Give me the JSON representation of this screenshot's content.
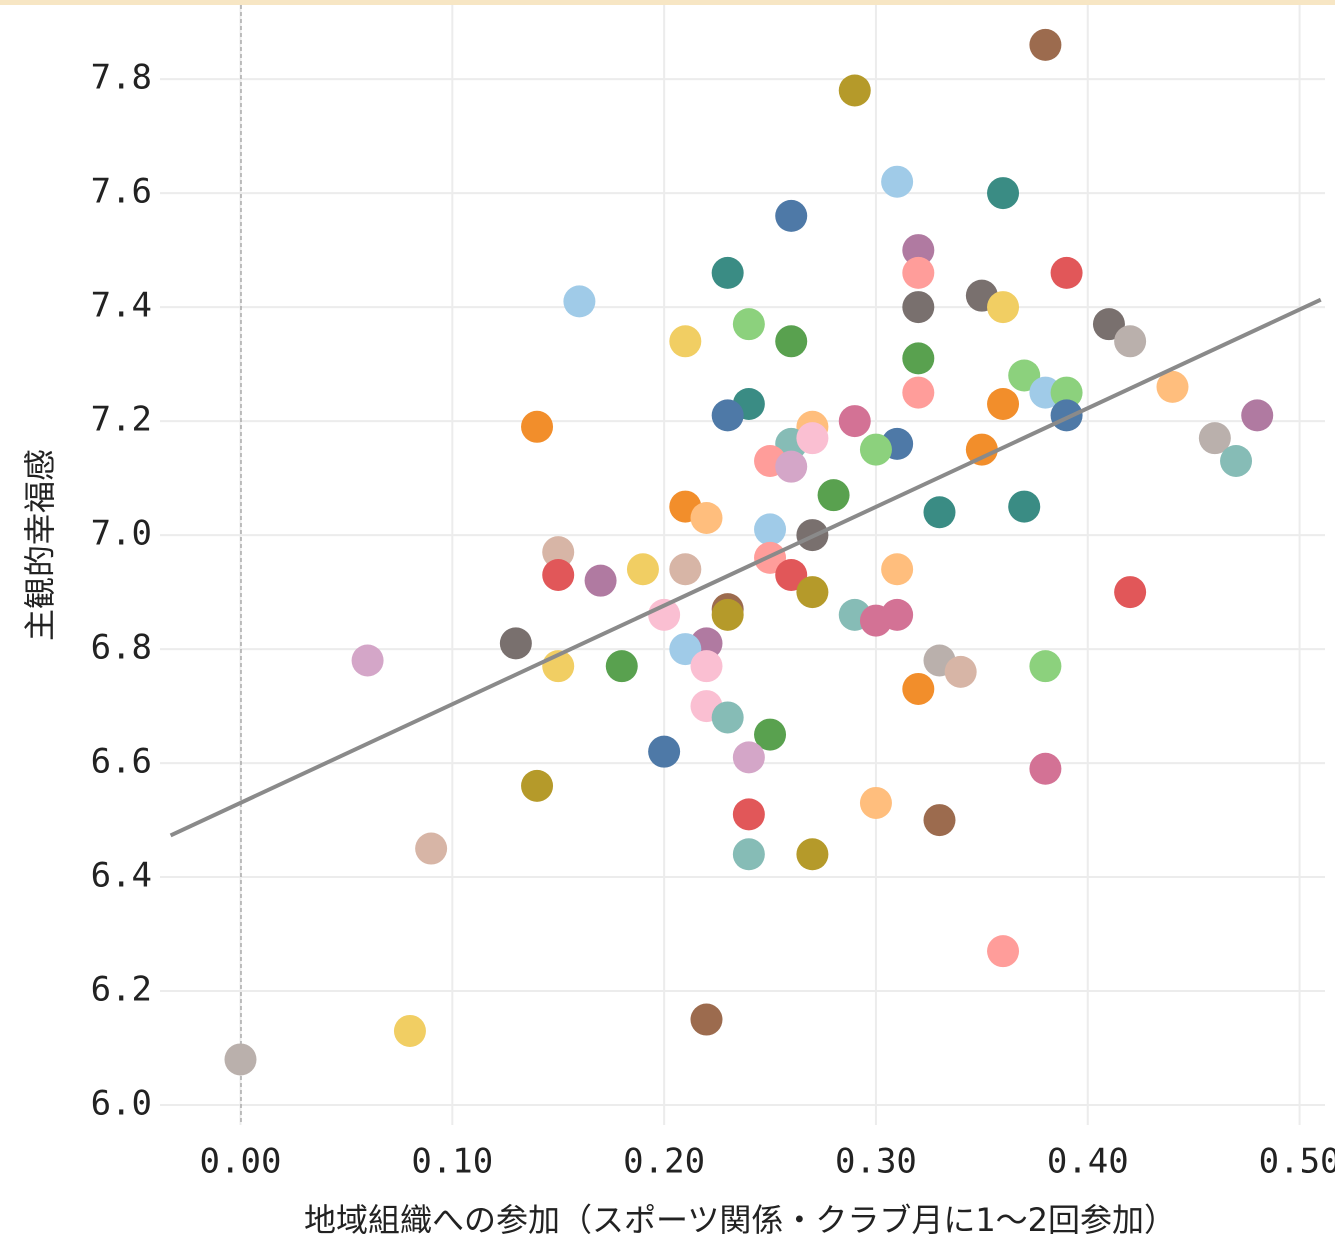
{
  "chart_data": {
    "type": "scatter",
    "xlabel": "地域組織への参加（スポーツ関係・クラブ月に1～2回参加）",
    "ylabel": "主観的幸福感",
    "xlim": [
      -0.038,
      0.512
    ],
    "ylim": [
      5.965,
      7.93
    ],
    "xticks": [
      {
        "value": 0,
        "label": "0.00"
      },
      {
        "value": 0.1,
        "label": "0.10"
      },
      {
        "value": 0.2,
        "label": "0.20"
      },
      {
        "value": 0.3,
        "label": "0.30"
      },
      {
        "value": 0.4,
        "label": "0.40"
      },
      {
        "value": 0.5,
        "label": "0.50"
      }
    ],
    "yticks": [
      {
        "value": 6,
        "label": "6.0"
      },
      6.2,
      6.4,
      6.6,
      6.8,
      {
        "value": 7,
        "label": "7.0"
      },
      7.2,
      7.4,
      7.6,
      7.8
    ],
    "grid": true,
    "x": [
      0.38,
      0.29,
      0.31,
      0.36,
      0.26,
      0.32,
      0.32,
      0.23,
      0.39,
      0.16,
      0.35,
      0.36,
      0.32,
      0.41,
      0.42,
      0.24,
      0.26,
      0.21,
      0.32,
      0.37,
      0.44,
      0.38,
      0.39,
      0.32,
      0.36,
      0.24,
      0.23,
      0.39,
      0.48,
      0.14,
      0.29,
      0.27,
      0.26,
      0.27,
      0.31,
      0.3,
      0.46,
      0.47,
      0.35,
      0.25,
      0.26,
      0.28,
      0.21,
      0.22,
      0.33,
      0.37,
      0.25,
      0.27,
      0.15,
      0.15,
      0.17,
      0.19,
      0.21,
      0.25,
      0.26,
      0.31,
      0.42,
      0.27,
      0.23,
      0.23,
      0.2,
      0.29,
      0.3,
      0.31,
      0.13,
      0.22,
      0.21,
      0.06,
      0.15,
      0.18,
      0.22,
      0.33,
      0.34,
      0.38,
      0.32,
      0.22,
      0.23,
      0.25,
      0.2,
      0.24,
      0.38,
      0.14,
      0.3,
      0.24,
      0.33,
      0.09,
      0.24,
      0.27,
      0.36,
      0.08,
      0.22,
      0.0
    ],
    "values": [
      7.86,
      7.78,
      7.62,
      7.6,
      7.56,
      7.5,
      7.46,
      7.46,
      7.46,
      7.41,
      7.42,
      7.4,
      7.4,
      7.37,
      7.34,
      7.37,
      7.34,
      7.34,
      7.31,
      7.28,
      7.26,
      7.25,
      7.25,
      7.25,
      7.23,
      7.23,
      7.21,
      7.21,
      7.21,
      7.19,
      7.2,
      7.19,
      7.16,
      7.17,
      7.16,
      7.15,
      7.17,
      7.13,
      7.15,
      7.13,
      7.12,
      7.07,
      7.05,
      7.03,
      7.04,
      7.05,
      7.01,
      7.0,
      6.97,
      6.93,
      6.92,
      6.94,
      6.94,
      6.96,
      6.93,
      6.94,
      6.9,
      6.9,
      6.87,
      6.86,
      6.86,
      6.86,
      6.85,
      6.86,
      6.81,
      6.81,
      6.8,
      6.78,
      6.77,
      6.77,
      6.77,
      6.78,
      6.76,
      6.77,
      6.73,
      6.7,
      6.68,
      6.65,
      6.62,
      6.61,
      6.59,
      6.56,
      6.53,
      6.51,
      6.5,
      6.45,
      6.44,
      6.44,
      6.27,
      6.13,
      6.15,
      6.08
    ],
    "colors": [
      "#9c6b4e",
      "#b59a2a",
      "#a0cbe8",
      "#3a8c84",
      "#4e79a7",
      "#b07aa1",
      "#ff9d9a",
      "#3a8c84",
      "#e15759",
      "#a0cbe8",
      "#79706e",
      "#f1ce63",
      "#79706e",
      "#79706e",
      "#bab0ac",
      "#8cd17d",
      "#59a14f",
      "#f1ce63",
      "#59a14f",
      "#8cd17d",
      "#ffbe7d",
      "#a0cbe8",
      "#8cd17d",
      "#ff9d9a",
      "#f28e2b",
      "#3a8c84",
      "#4e79a7",
      "#4e79a7",
      "#b07aa1",
      "#f28e2b",
      "#d37295",
      "#ffbe7d",
      "#86bcb6",
      "#fabfd2",
      "#4e79a7",
      "#8cd17d",
      "#bab0ac",
      "#86bcb6",
      "#f28e2b",
      "#ff9d9a",
      "#d4a6c8",
      "#59a14f",
      "#f28e2b",
      "#ffbe7d",
      "#3a8c84",
      "#3a8c84",
      "#a0cbe8",
      "#79706e",
      "#d7b5a6",
      "#e15759",
      "#b07aa1",
      "#f1ce63",
      "#d7b5a6",
      "#ff9d9a",
      "#e15759",
      "#ffbe7d",
      "#e15759",
      "#b59a2a",
      "#9c6b4e",
      "#b59a2a",
      "#fabfd2",
      "#86bcb6",
      "#d37295",
      "#d37295",
      "#79706e",
      "#b07aa1",
      "#a0cbe8",
      "#d4a6c8",
      "#f1ce63",
      "#59a14f",
      "#fabfd2",
      "#bab0ac",
      "#d7b5a6",
      "#8cd17d",
      "#f28e2b",
      "#fabfd2",
      "#86bcb6",
      "#59a14f",
      "#4e79a7",
      "#d4a6c8",
      "#d37295",
      "#b59a2a",
      "#ffbe7d",
      "#e15759",
      "#9c6b4e",
      "#d7b5a6",
      "#86bcb6",
      "#b59a2a",
      "#ff9d9a",
      "#f1ce63",
      "#9c6b4e",
      "#bab0ac"
    ],
    "trend_line": {
      "x": [
        -0.033,
        0.51
      ],
      "values": [
        6.473,
        7.413
      ],
      "color": "#8a8a8a"
    }
  }
}
